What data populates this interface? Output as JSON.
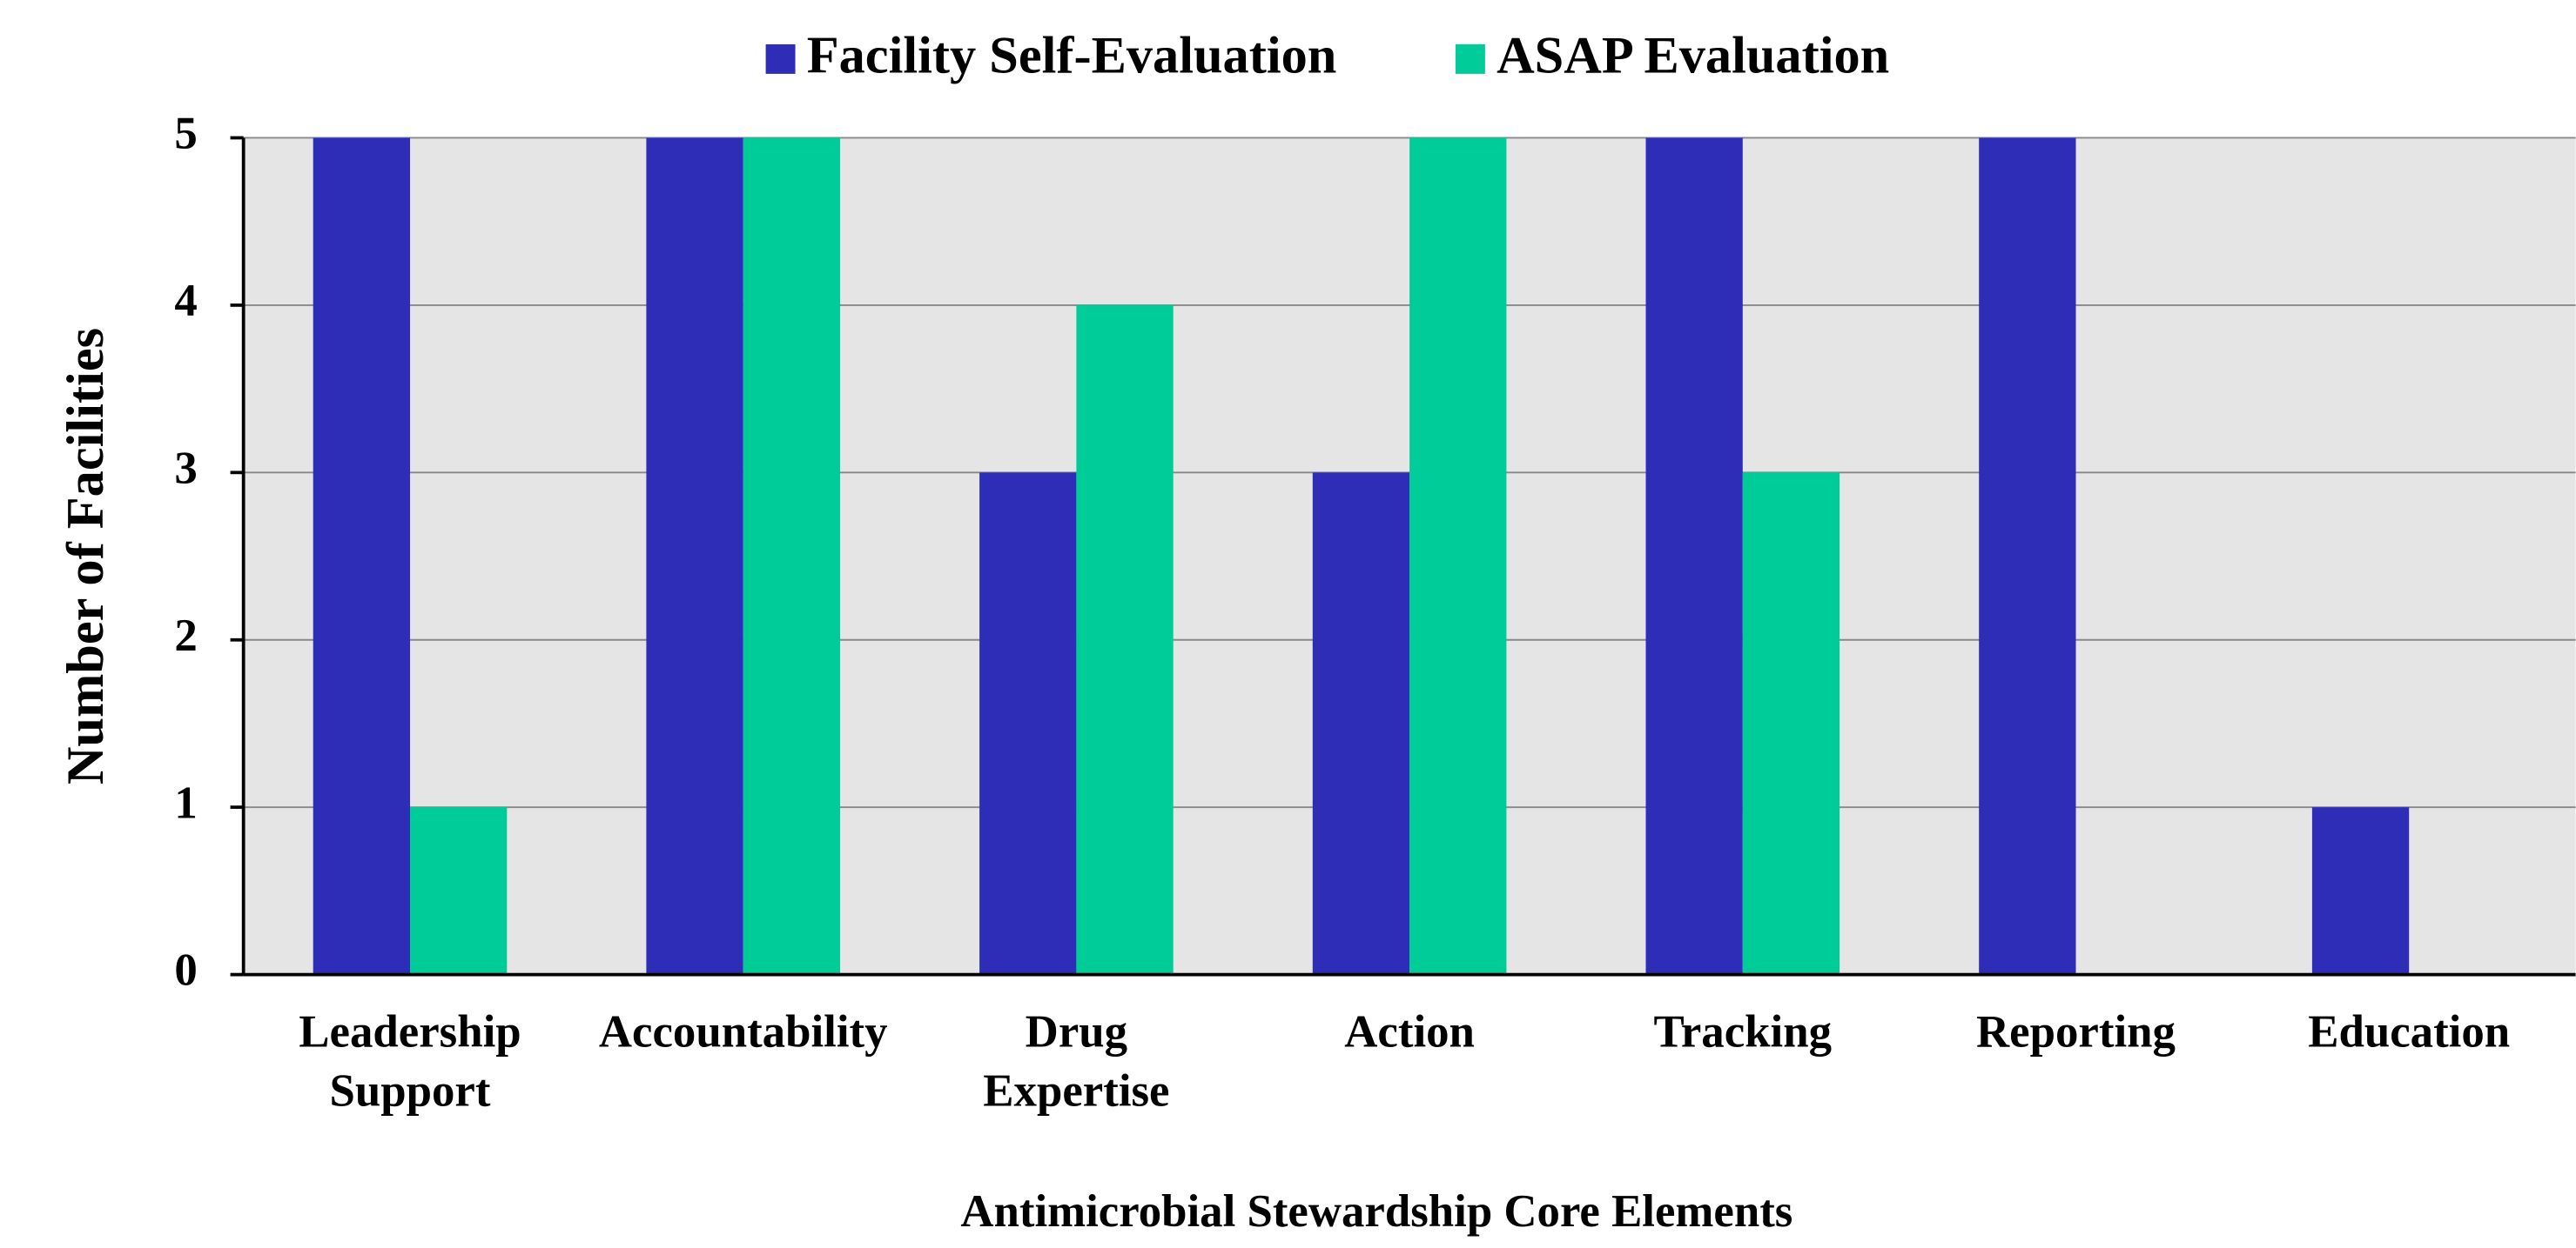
{
  "chart_data": {
    "type": "bar",
    "x_label": "Antimicrobial Stewardship Core Elements",
    "y_label": "Number of Facilities",
    "categories": [
      "Leadership Support",
      "Accountability",
      "Drug Expertise",
      "Action",
      "Tracking",
      "Reporting",
      "Education"
    ],
    "series": [
      {
        "name": "Facility Self-Evaluation",
        "color": "#2e2db8",
        "values": [
          5,
          5,
          3,
          3,
          5,
          5,
          1
        ]
      },
      {
        "name": "ASAP Evaluation",
        "color": "#00cc99",
        "values": [
          1,
          5,
          4,
          5,
          3,
          0,
          0
        ]
      }
    ],
    "ylim": [
      0,
      5
    ],
    "yticks": [
      0,
      1,
      2,
      3,
      4,
      5
    ],
    "grid": true,
    "legend": "top"
  }
}
